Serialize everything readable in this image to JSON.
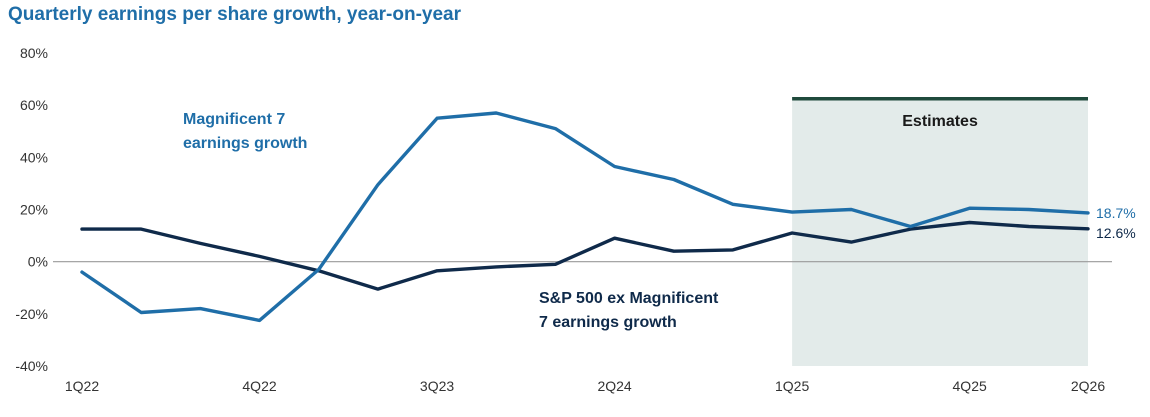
{
  "chart_data": {
    "type": "line",
    "title": "Quarterly earnings per share growth, year-on-year",
    "xlabel": "",
    "ylabel": "",
    "ylim": [
      -40,
      80
    ],
    "yticks": [
      "80%",
      "60%",
      "40%",
      "20%",
      "0%",
      "-20%",
      "-40%"
    ],
    "ytick_values": [
      80,
      60,
      40,
      20,
      0,
      -20,
      -40
    ],
    "categories": [
      "1Q22",
      "2Q22",
      "3Q22",
      "4Q22",
      "1Q23",
      "2Q23",
      "3Q23",
      "4Q23",
      "1Q24",
      "2Q24",
      "3Q24",
      "4Q24",
      "1Q25",
      "2Q25",
      "3Q25",
      "4Q25",
      "1Q26",
      "2Q26"
    ],
    "x_tick_labels": [
      {
        "index": 0,
        "label": "1Q22"
      },
      {
        "index": 3,
        "label": "4Q22"
      },
      {
        "index": 6,
        "label": "3Q23"
      },
      {
        "index": 9,
        "label": "2Q24"
      },
      {
        "index": 12,
        "label": "1Q25"
      },
      {
        "index": 15,
        "label": "4Q25"
      },
      {
        "index": 17,
        "label": "2Q26"
      }
    ],
    "series": [
      {
        "name": "Magnificent 7 earnings growth",
        "label_lines": [
          "Magnificent 7",
          "earnings growth"
        ],
        "color": "#1f6ea8",
        "values": [
          -4,
          -19.5,
          -18,
          -22.5,
          -3,
          29.5,
          55,
          57,
          51,
          36.5,
          31.5,
          22,
          19,
          20,
          13.5,
          20.5,
          20,
          18.7
        ],
        "end_label": "18.7%"
      },
      {
        "name": "S&P 500 ex Magnificent 7 earnings growth",
        "label_lines": [
          "S&P 500 ex Magnificent",
          "7 earnings growth"
        ],
        "color": "#0f2a4a",
        "values": [
          12.5,
          12.5,
          7,
          2,
          -3.5,
          -10.5,
          -3.5,
          -2,
          -1,
          9,
          4,
          4.5,
          11,
          7.5,
          12.5,
          15,
          13.5,
          12.6
        ],
        "end_label": "12.6%"
      }
    ],
    "estimates_region": {
      "label": "Estimates",
      "start": "1Q25",
      "end": "2Q26",
      "fill": "#e3ebea",
      "bar_color": "#1f4a3c"
    }
  }
}
